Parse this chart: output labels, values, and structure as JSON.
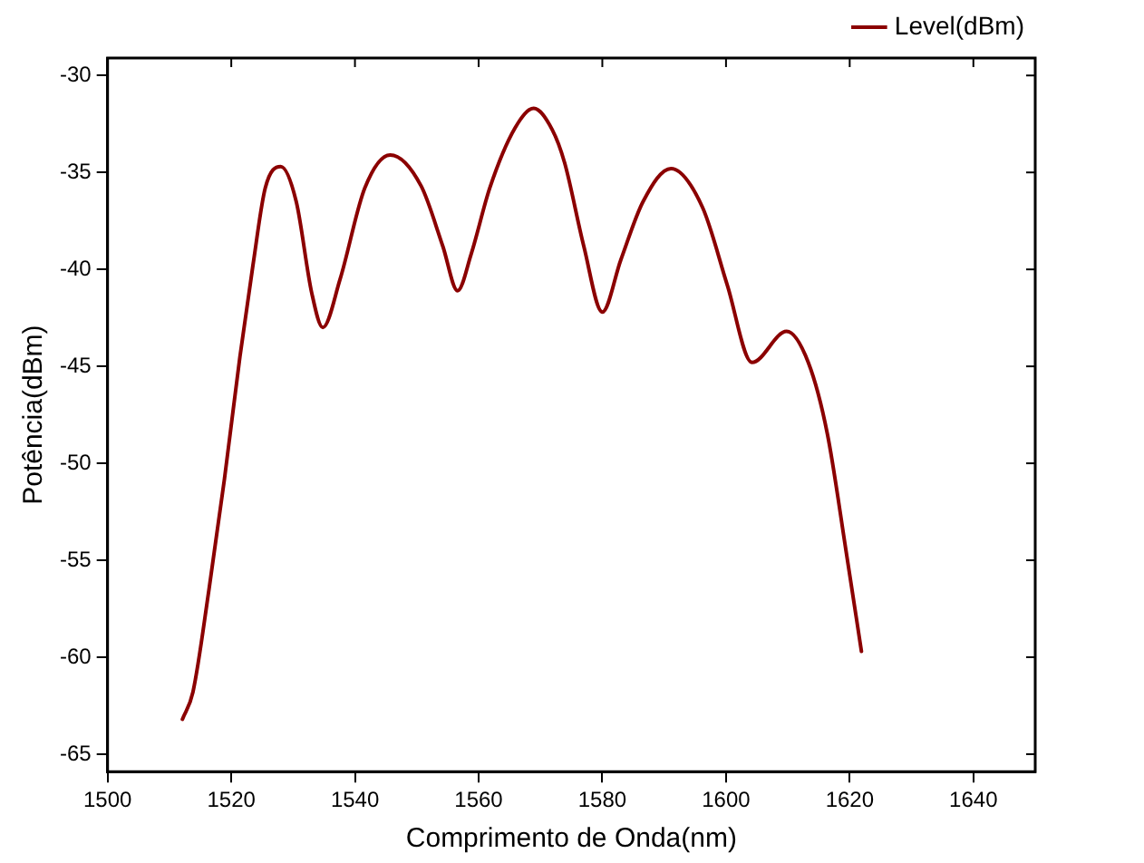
{
  "chart_data": {
    "type": "line",
    "xlabel": "Comprimento de Onda(nm)",
    "ylabel": "Potência(dBm)",
    "xlim": [
      1500,
      1650
    ],
    "xticks": [
      1500,
      1520,
      1540,
      1560,
      1580,
      1600,
      1620,
      1640
    ],
    "ylim": [
      -65.9,
      -29.1
    ],
    "yticks": [
      -65,
      -60,
      -55,
      -50,
      -45,
      -40,
      -35,
      -30
    ],
    "grid": false,
    "legend": "top right",
    "marker": "none",
    "line_style": "solid",
    "series": [
      {
        "name": "Level(dBm)",
        "color": "#8b0000",
        "x": [
          1512.1,
          1513.8,
          1516.4,
          1518.9,
          1521.4,
          1523.5,
          1525.5,
          1528.0,
          1530.5,
          1533.0,
          1534.8,
          1537.6,
          1541.6,
          1545.7,
          1550.7,
          1554.2,
          1556.6,
          1558.8,
          1561.8,
          1565.9,
          1568.9,
          1571.9,
          1573.9,
          1577.0,
          1580.0,
          1583.0,
          1586.6,
          1591.1,
          1596.2,
          1600.2,
          1604.2,
          1609.8,
          1613.3,
          1616.4,
          1619.4,
          1621.9
        ],
        "values": [
          -63.2,
          -61.8,
          -56.5,
          -50.8,
          -44.5,
          -39.8,
          -35.8,
          -34.7,
          -36.5,
          -41.2,
          -43.0,
          -40.5,
          -35.8,
          -34.1,
          -35.7,
          -38.8,
          -41.1,
          -39.2,
          -35.8,
          -32.7,
          -31.7,
          -32.8,
          -34.5,
          -38.8,
          -42.2,
          -39.5,
          -36.5,
          -34.8,
          -36.8,
          -40.8,
          -44.8,
          -43.2,
          -44.8,
          -48.5,
          -54.5,
          -59.7
        ]
      }
    ]
  }
}
